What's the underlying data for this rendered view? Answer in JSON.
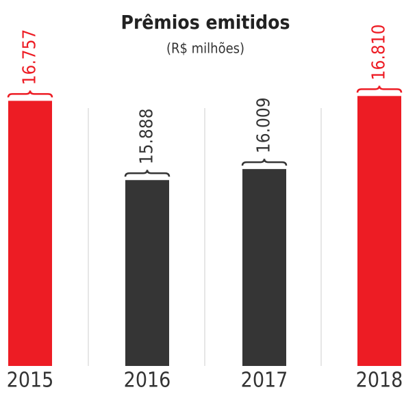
{
  "chart_data": {
    "type": "bar",
    "title": "Prêmios emitidos",
    "subtitle": "(R$ milhões)",
    "categories": [
      "2015",
      "2016",
      "2017",
      "2018"
    ],
    "values": [
      16757,
      15888,
      16009,
      16810
    ],
    "value_labels": [
      "16.757",
      "15.888",
      "16.009",
      "16.810"
    ],
    "colors": [
      "#ed1c24",
      "#353535",
      "#353535",
      "#ed1c24"
    ],
    "ylim": [
      13850,
      17300
    ]
  }
}
